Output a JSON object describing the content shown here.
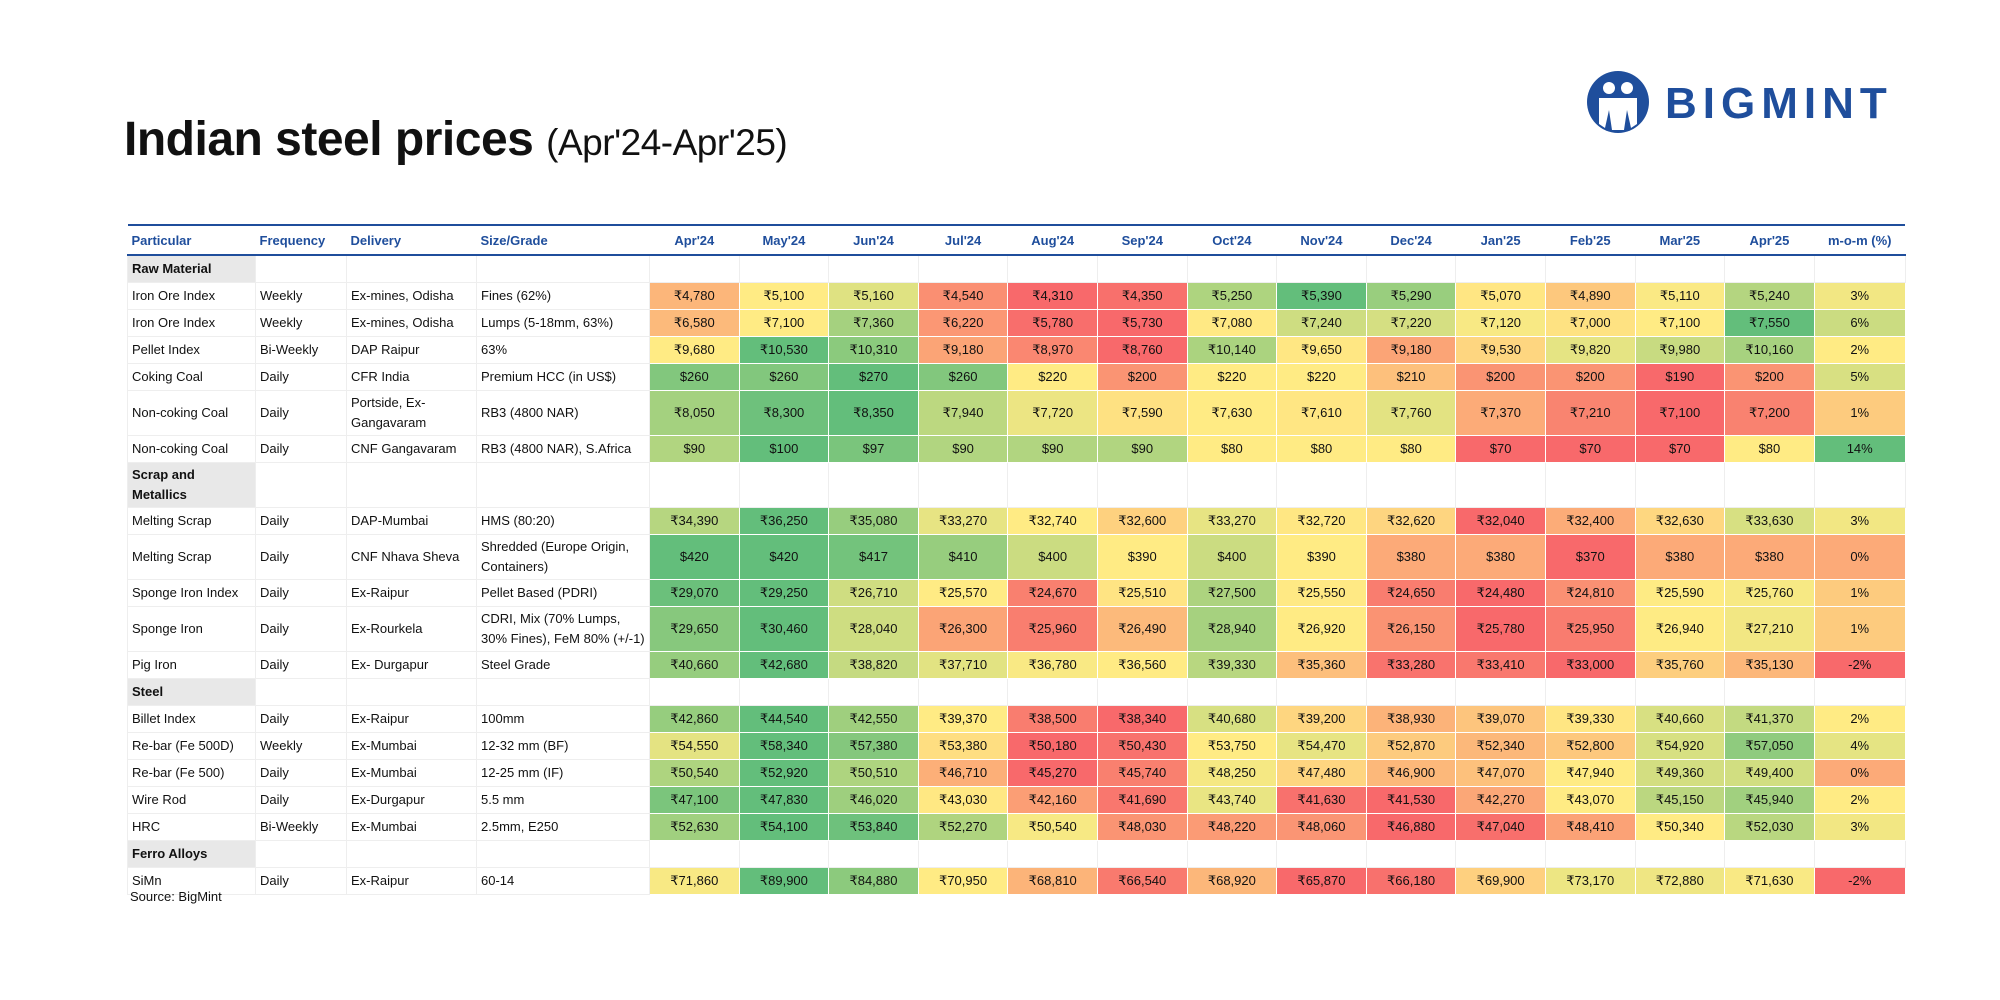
{
  "header": {
    "title": "Indian steel prices",
    "subtitle": "(Apr'24-Apr'25)",
    "logo": "BIGMINT"
  },
  "table": {
    "columns": [
      "Particular",
      "Frequency",
      "Delivery",
      "Size/Grade",
      "Apr'24",
      "May'24",
      "Jun'24",
      "Jul'24",
      "Aug'24",
      "Sep'24",
      "Oct'24",
      "Nov'24",
      "Dec'24",
      "Jan'25",
      "Feb'25",
      "Mar'25",
      "Apr'25",
      "m-o-m (%)"
    ],
    "sections": [
      {
        "name": "Raw Material",
        "rows": [
          {
            "particular": "Iron Ore Index",
            "frequency": "Weekly",
            "delivery": "Ex-mines, Odisha",
            "grade": "Fines (62%)",
            "prices": [
              "₹4,780",
              "₹5,100",
              "₹5,160",
              "₹4,540",
              "₹4,310",
              "₹4,350",
              "₹5,250",
              "₹5,390",
              "₹5,290",
              "₹5,070",
              "₹4,890",
              "₹5,110",
              "₹5,240"
            ],
            "mom": "3%"
          },
          {
            "particular": "Iron Ore Index",
            "frequency": "Weekly",
            "delivery": "Ex-mines, Odisha",
            "grade": "Lumps (5-18mm, 63%)",
            "prices": [
              "₹6,580",
              "₹7,100",
              "₹7,360",
              "₹6,220",
              "₹5,780",
              "₹5,730",
              "₹7,080",
              "₹7,240",
              "₹7,220",
              "₹7,120",
              "₹7,000",
              "₹7,100",
              "₹7,550"
            ],
            "mom": "6%"
          },
          {
            "particular": "Pellet Index",
            "frequency": "Bi-Weekly",
            "delivery": "DAP Raipur",
            "grade": "63%",
            "prices": [
              "₹9,680",
              "₹10,530",
              "₹10,310",
              "₹9,180",
              "₹8,970",
              "₹8,760",
              "₹10,140",
              "₹9,650",
              "₹9,180",
              "₹9,530",
              "₹9,820",
              "₹9,980",
              "₹10,160"
            ],
            "mom": "2%"
          },
          {
            "particular": "Coking Coal",
            "frequency": "Daily",
            "delivery": "CFR India",
            "grade": "Premium HCC (in US$)",
            "prices": [
              "$260",
              "$260",
              "$270",
              "$260",
              "$220",
              "$200",
              "$220",
              "$220",
              "$210",
              "$200",
              "$200",
              "$190",
              "$200"
            ],
            "mom": "5%"
          },
          {
            "particular": "Non-coking Coal",
            "frequency": "Daily",
            "delivery": "Portside, Ex-Gangavaram",
            "grade": "RB3 (4800 NAR)",
            "prices": [
              "₹8,050",
              "₹8,300",
              "₹8,350",
              "₹7,940",
              "₹7,720",
              "₹7,590",
              "₹7,630",
              "₹7,610",
              "₹7,760",
              "₹7,370",
              "₹7,210",
              "₹7,100",
              "₹7,200"
            ],
            "mom": "1%"
          },
          {
            "particular": "Non-coking Coal",
            "frequency": "Daily",
            "delivery": "CNF Gangavaram",
            "grade": "RB3 (4800 NAR), S.Africa",
            "prices": [
              "$90",
              "$100",
              "$97",
              "$90",
              "$90",
              "$90",
              "$80",
              "$80",
              "$80",
              "$70",
              "$70",
              "$70",
              "$80"
            ],
            "mom": "14%"
          }
        ]
      },
      {
        "name": "Scrap and Metallics",
        "rows": [
          {
            "particular": "Melting Scrap",
            "frequency": "Daily",
            "delivery": "DAP-Mumbai",
            "grade": "HMS (80:20)",
            "prices": [
              "₹34,390",
              "₹36,250",
              "₹35,080",
              "₹33,270",
              "₹32,740",
              "₹32,600",
              "₹33,270",
              "₹32,720",
              "₹32,620",
              "₹32,040",
              "₹32,400",
              "₹32,630",
              "₹33,630"
            ],
            "mom": "3%"
          },
          {
            "particular": "Melting Scrap",
            "frequency": "Daily",
            "delivery": "CNF Nhava Sheva",
            "grade": "Shredded (Europe Origin, Containers)",
            "prices": [
              "$420",
              "$420",
              "$417",
              "$410",
              "$400",
              "$390",
              "$400",
              "$390",
              "$380",
              "$380",
              "$370",
              "$380",
              "$380"
            ],
            "mom": "0%"
          },
          {
            "particular": "Sponge Iron Index",
            "frequency": "Daily",
            "delivery": "Ex-Raipur",
            "grade": "Pellet Based (PDRI)",
            "prices": [
              "₹29,070",
              "₹29,250",
              "₹26,710",
              "₹25,570",
              "₹24,670",
              "₹25,510",
              "₹27,500",
              "₹25,550",
              "₹24,650",
              "₹24,480",
              "₹24,810",
              "₹25,590",
              "₹25,760"
            ],
            "mom": "1%"
          },
          {
            "particular": "Sponge Iron",
            "frequency": "Daily",
            "delivery": "Ex-Rourkela",
            "grade": "CDRI, Mix (70% Lumps, 30% Fines), FeM 80% (+/-1)",
            "prices": [
              "₹29,650",
              "₹30,460",
              "₹28,040",
              "₹26,300",
              "₹25,960",
              "₹26,490",
              "₹28,940",
              "₹26,920",
              "₹26,150",
              "₹25,780",
              "₹25,950",
              "₹26,940",
              "₹27,210"
            ],
            "mom": "1%"
          },
          {
            "particular": "Pig Iron",
            "frequency": "Daily",
            "delivery": "Ex- Durgapur",
            "grade": "Steel Grade",
            "prices": [
              "₹40,660",
              "₹42,680",
              "₹38,820",
              "₹37,710",
              "₹36,780",
              "₹36,560",
              "₹39,330",
              "₹35,360",
              "₹33,280",
              "₹33,410",
              "₹33,000",
              "₹35,760",
              "₹35,130"
            ],
            "mom": "-2%"
          }
        ]
      },
      {
        "name": "Steel",
        "rows": [
          {
            "particular": "Billet Index",
            "frequency": "Daily",
            "delivery": "Ex-Raipur",
            "grade": "100mm",
            "prices": [
              "₹42,860",
              "₹44,540",
              "₹42,550",
              "₹39,370",
              "₹38,500",
              "₹38,340",
              "₹40,680",
              "₹39,200",
              "₹38,930",
              "₹39,070",
              "₹39,330",
              "₹40,660",
              "₹41,370"
            ],
            "mom": "2%"
          },
          {
            "particular": "Re-bar (Fe 500D)",
            "frequency": "Weekly",
            "delivery": "Ex-Mumbai",
            "grade": "12-32 mm (BF)",
            "prices": [
              "₹54,550",
              "₹58,340",
              "₹57,380",
              "₹53,380",
              "₹50,180",
              "₹50,430",
              "₹53,750",
              "₹54,470",
              "₹52,870",
              "₹52,340",
              "₹52,800",
              "₹54,920",
              "₹57,050"
            ],
            "mom": "4%"
          },
          {
            "particular": "Re-bar (Fe 500)",
            "frequency": "Daily",
            "delivery": "Ex-Mumbai",
            "grade": "12-25 mm (IF)",
            "prices": [
              "₹50,540",
              "₹52,920",
              "₹50,510",
              "₹46,710",
              "₹45,270",
              "₹45,740",
              "₹48,250",
              "₹47,480",
              "₹46,900",
              "₹47,070",
              "₹47,940",
              "₹49,360",
              "₹49,400"
            ],
            "mom": "0%"
          },
          {
            "particular": "Wire Rod",
            "frequency": "Daily",
            "delivery": "Ex-Durgapur",
            "grade": "5.5 mm",
            "prices": [
              "₹47,100",
              "₹47,830",
              "₹46,020",
              "₹43,030",
              "₹42,160",
              "₹41,690",
              "₹43,740",
              "₹41,630",
              "₹41,530",
              "₹42,270",
              "₹43,070",
              "₹45,150",
              "₹45,940"
            ],
            "mom": "2%"
          },
          {
            "particular": "HRC",
            "frequency": "Bi-Weekly",
            "delivery": "Ex-Mumbai",
            "grade": "2.5mm, E250",
            "prices": [
              "₹52,630",
              "₹54,100",
              "₹53,840",
              "₹52,270",
              "₹50,540",
              "₹48,030",
              "₹48,220",
              "₹48,060",
              "₹46,880",
              "₹47,040",
              "₹48,410",
              "₹50,340",
              "₹52,030"
            ],
            "mom": "3%"
          }
        ]
      },
      {
        "name": "Ferro Alloys",
        "rows": [
          {
            "particular": "SiMn",
            "frequency": "Daily",
            "delivery": "Ex-Raipur",
            "grade": "60-14",
            "prices": [
              "₹71,860",
              "₹89,900",
              "₹84,880",
              "₹70,950",
              "₹68,810",
              "₹66,540",
              "₹68,920",
              "₹65,870",
              "₹66,180",
              "₹69,900",
              "₹73,170",
              "₹72,880",
              "₹71,630"
            ],
            "mom": "-2%"
          }
        ]
      }
    ]
  },
  "footer": {
    "source": "Source: BigMint"
  }
}
